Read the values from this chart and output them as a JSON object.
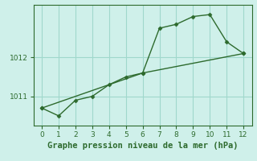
{
  "line1_x": [
    0,
    1,
    2,
    3,
    4,
    5,
    6,
    7,
    8,
    9,
    10,
    11,
    12
  ],
  "line1_y": [
    1010.7,
    1010.5,
    1010.9,
    1011.0,
    1011.3,
    1011.5,
    1011.6,
    1012.75,
    1012.85,
    1013.05,
    1013.1,
    1012.4,
    1012.1
  ],
  "line2_x": [
    0,
    6,
    12
  ],
  "line2_y": [
    1010.7,
    1011.6,
    1012.1
  ],
  "line_color": "#2d6a2d",
  "bg_color": "#cff0ea",
  "grid_color": "#a0d8cc",
  "title": "Graphe pression niveau de la mer (hPa)",
  "xlim": [
    -0.5,
    12.5
  ],
  "ylim": [
    1010.25,
    1013.35
  ],
  "yticks": [
    1011,
    1012
  ],
  "xticks": [
    0,
    1,
    2,
    3,
    4,
    5,
    6,
    7,
    8,
    9,
    10,
    11,
    12
  ],
  "marker": "D",
  "markersize": 2.5,
  "linewidth": 1.0,
  "title_fontsize": 7.5,
  "tick_fontsize": 6.5
}
